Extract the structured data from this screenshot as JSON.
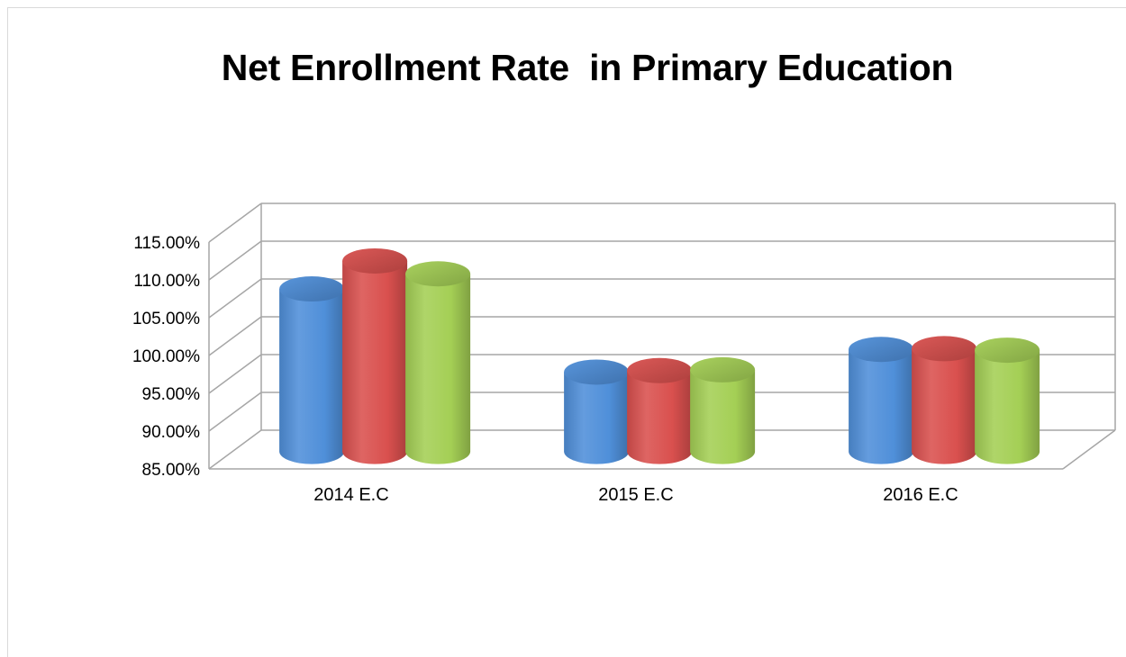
{
  "chart_data": {
    "type": "bar",
    "title": "Net Enrollment Rate  in Primary Education",
    "xlabel": "",
    "ylabel": "",
    "categories": [
      "2014 E.C",
      "2015 E.C",
      "2016 E.C"
    ],
    "series": [
      {
        "values": [
          106.5,
          95.5,
          98.5
        ]
      },
      {
        "values": [
          110.2,
          95.7,
          98.6
        ]
      },
      {
        "values": [
          108.5,
          95.8,
          98.4
        ]
      }
    ],
    "yticks": [
      "85.00%",
      "90.00%",
      "95.00%",
      "100.00%",
      "105.00%",
      "110.00%",
      "115.00%"
    ],
    "ylim": [
      85,
      115
    ],
    "grid": true,
    "legend": "none",
    "style": "3d-cylinder",
    "colors": [
      "#4f8fd9",
      "#d9504e",
      "#a4cf55"
    ]
  }
}
